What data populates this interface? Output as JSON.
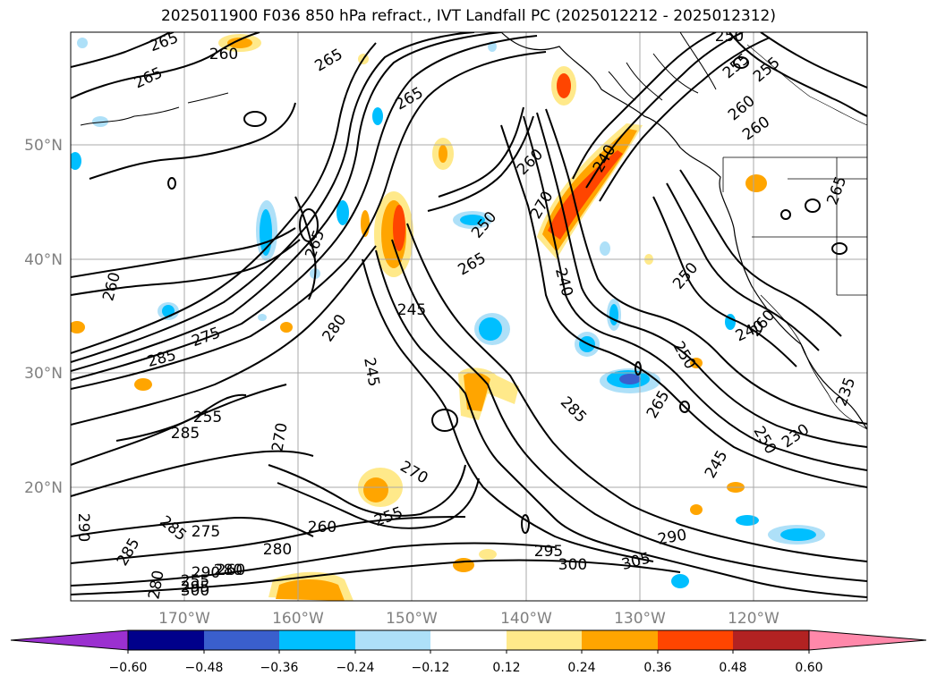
{
  "title": "2025011900 F036 850 hPa refract., IVT Landfall PC (2025012212 - 2025012312)",
  "lat_labels": [
    "50°N",
    "40°N",
    "30°N",
    "20°N"
  ],
  "lon_labels": [
    "170°W",
    "160°W",
    "150°W",
    "140°W",
    "130°W",
    "120°W"
  ],
  "colorbar": {
    "colors": [
      "#9b30d0",
      "#00008b",
      "#3a5fcd",
      "#00bfff",
      "#aee0f8",
      "#ffffff",
      "#ffe98a",
      "#ffa500",
      "#ff4500",
      "#b22222",
      "#ff88aa"
    ],
    "tick_labels": [
      "−0.60",
      "−0.48",
      "−0.36",
      "−0.24",
      "−0.12",
      "0.12",
      "0.24",
      "0.36",
      "0.48",
      "0.60"
    ]
  },
  "contour_labels": [
    "265",
    "260",
    "265",
    "265",
    "265",
    "260",
    "250",
    "250",
    "260",
    "255",
    "265",
    "260",
    "255",
    "250",
    "255",
    "265",
    "260",
    "275",
    "285",
    "285",
    "280",
    "245",
    "245",
    "265",
    "240",
    "270",
    "240",
    "260",
    "240",
    "250",
    "250",
    "235",
    "230",
    "245",
    "265",
    "270",
    "285",
    "275",
    "255",
    "260",
    "280",
    "260",
    "255",
    "270",
    "280",
    "290",
    "285",
    "295",
    "280",
    "290",
    "285",
    "300",
    "295",
    "305",
    "290",
    "300"
  ]
}
